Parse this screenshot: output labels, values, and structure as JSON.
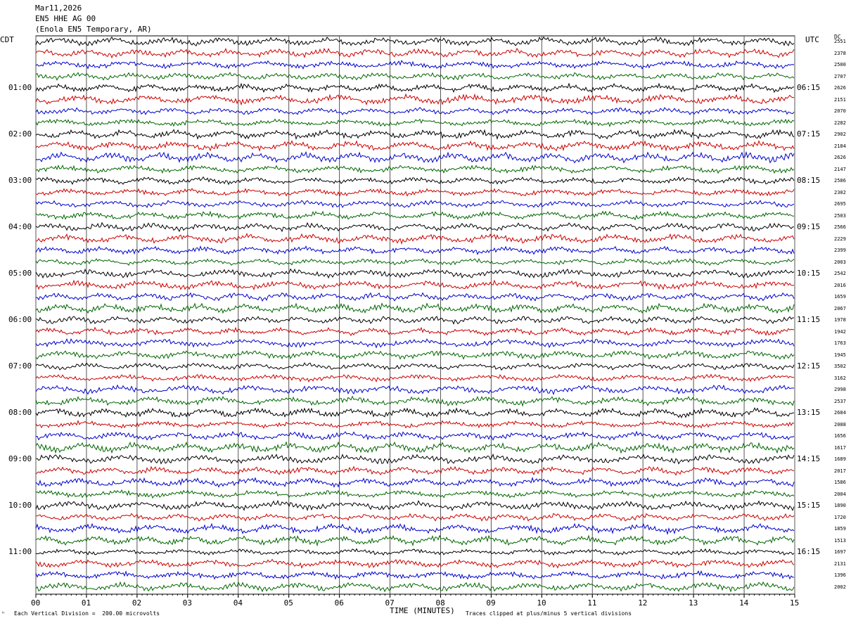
{
  "header": {
    "date": "Mar11,2026",
    "station": "EN5 HHE AG 00",
    "location": "(Enola EN5 Temporary, AR)"
  },
  "left_tz": "CDT",
  "right_tz": "UTC",
  "dc_label": "DC",
  "footer": {
    "scale_note": "Each Vertical Division =  200.00 microvolts",
    "clip_note": "Traces clipped at plus/minus 5 vertical divisions",
    "corner_mark": "ⁿ"
  },
  "colors": [
    "#000000",
    "#cc0000",
    "#0000cc",
    "#006600"
  ],
  "chart_data": {
    "type": "line",
    "xlabel": "TIME (MINUTES)",
    "xlim": [
      0,
      15
    ],
    "x_ticks": [
      "00",
      "01",
      "02",
      "03",
      "04",
      "05",
      "06",
      "07",
      "08",
      "09",
      "10",
      "11",
      "12",
      "13",
      "14",
      "15"
    ],
    "left_hour_labels": [
      "01:00",
      "02:00",
      "03:00",
      "04:00",
      "05:00",
      "06:00",
      "07:00",
      "08:00",
      "09:00",
      "10:00",
      "11:00"
    ],
    "right_hour_labels": [
      "06:15",
      "07:15",
      "08:15",
      "09:15",
      "10:15",
      "11:15",
      "12:15",
      "13:15",
      "14:15",
      "15:15",
      "16:15"
    ],
    "dc_offsets": [
      "2551",
      "2378",
      "2500",
      "2707",
      "2626",
      "2151",
      "2070",
      "2282",
      "2902",
      "2184",
      "2626",
      "2147",
      "2586",
      "2302",
      "2695",
      "2503",
      "2566",
      "2229",
      "2399",
      "2003",
      "2542",
      "2016",
      "1659",
      "2067",
      "1978",
      "1942",
      "1763",
      "1945",
      "3502",
      "3162",
      "2998",
      "2537",
      "2684",
      "2088",
      "1656",
      "1617",
      "1689",
      "2017",
      "1586",
      "2004",
      "1890",
      "1720",
      "1859",
      "1513",
      "1697",
      "2131",
      "1396",
      "2002"
    ]
  }
}
